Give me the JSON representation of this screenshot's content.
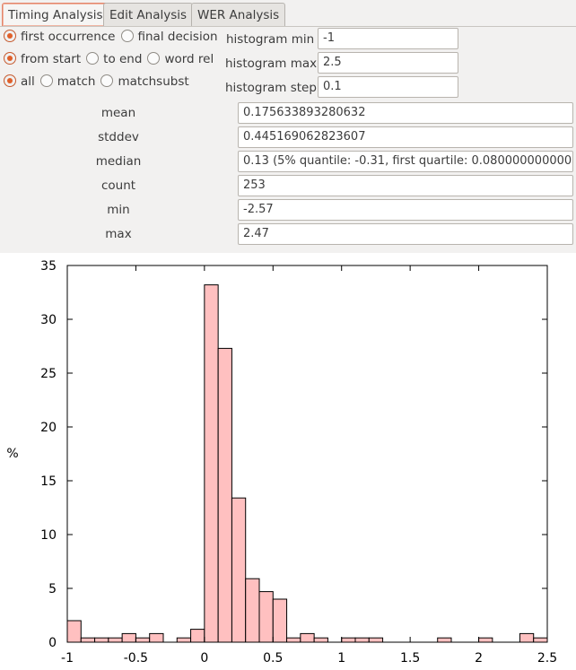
{
  "tabs": [
    {
      "label": "Timing Analysis",
      "active": true
    },
    {
      "label": "Edit Analysis",
      "active": false
    },
    {
      "label": "WER Analysis",
      "active": false
    }
  ],
  "options": {
    "row1": [
      {
        "label": "first occurrence",
        "checked": true
      },
      {
        "label": "final decision",
        "checked": false
      }
    ],
    "row2": [
      {
        "label": "from start",
        "checked": true
      },
      {
        "label": "to end",
        "checked": false
      },
      {
        "label": "word rel",
        "checked": false
      }
    ],
    "row3": [
      {
        "label": "all",
        "checked": true
      },
      {
        "label": "match",
        "checked": false
      },
      {
        "label": "matchsubst",
        "checked": false
      }
    ]
  },
  "histogram": {
    "min_label": "histogram min",
    "min_value": "-1",
    "max_label": "histogram max",
    "max_value": "2.5",
    "step_label": "histogram step",
    "step_value": "0.1"
  },
  "stats": [
    {
      "label": "mean",
      "value": "0.175633893280632"
    },
    {
      "label": "stddev",
      "value": "0.445169062823607"
    },
    {
      "label": "median",
      "value": "0.13 (5% quantile: -0.31, first quartile: 0.0800000000000"
    },
    {
      "label": "count",
      "value": "253"
    },
    {
      "label": "min",
      "value": "-2.57"
    },
    {
      "label": "max",
      "value": "2.47"
    }
  ],
  "chart_data": {
    "type": "bar",
    "ylabel": "%",
    "xlim": [
      -1,
      2.5
    ],
    "ylim": [
      0,
      35
    ],
    "bin_width": 0.1,
    "x_ticks": [
      "-1",
      "-0.5",
      "0",
      "0.5",
      "1",
      "1.5",
      "2",
      "2.5"
    ],
    "y_ticks": [
      "0",
      "5",
      "10",
      "15",
      "20",
      "25",
      "30",
      "35"
    ],
    "bar_color": "#ffc0c0",
    "bins": [
      {
        "x": -1.0,
        "value": 2.0
      },
      {
        "x": -0.9,
        "value": 0.4
      },
      {
        "x": -0.8,
        "value": 0.4
      },
      {
        "x": -0.7,
        "value": 0.4
      },
      {
        "x": -0.6,
        "value": 0.8
      },
      {
        "x": -0.5,
        "value": 0.4
      },
      {
        "x": -0.4,
        "value": 0.8
      },
      {
        "x": -0.2,
        "value": 0.4
      },
      {
        "x": -0.1,
        "value": 1.2
      },
      {
        "x": 0.0,
        "value": 33.2
      },
      {
        "x": 0.1,
        "value": 27.3
      },
      {
        "x": 0.2,
        "value": 13.4
      },
      {
        "x": 0.3,
        "value": 5.9
      },
      {
        "x": 0.4,
        "value": 4.7
      },
      {
        "x": 0.5,
        "value": 4.0
      },
      {
        "x": 0.6,
        "value": 0.4
      },
      {
        "x": 0.7,
        "value": 0.8
      },
      {
        "x": 0.8,
        "value": 0.4
      },
      {
        "x": 1.0,
        "value": 0.4
      },
      {
        "x": 1.1,
        "value": 0.4
      },
      {
        "x": 1.2,
        "value": 0.4
      },
      {
        "x": 1.7,
        "value": 0.4
      },
      {
        "x": 2.0,
        "value": 0.4
      },
      {
        "x": 2.3,
        "value": 0.8
      },
      {
        "x": 2.4,
        "value": 0.4
      }
    ]
  }
}
